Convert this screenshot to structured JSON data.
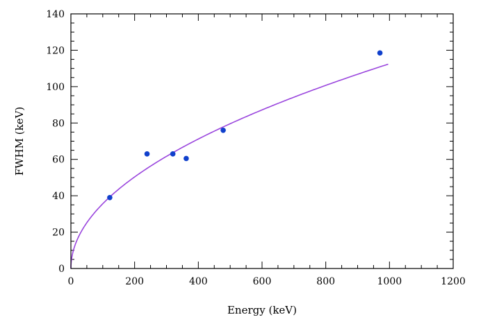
{
  "chart_data": {
    "type": "scatter",
    "title": "",
    "xlabel": "Energy (keV)",
    "ylabel": "FWHM (keV)",
    "xlim": [
      0,
      1200
    ],
    "ylim": [
      0,
      140
    ],
    "x_ticks": [
      0,
      200,
      400,
      600,
      800,
      1000,
      1200
    ],
    "y_ticks": [
      0,
      20,
      40,
      60,
      80,
      100,
      120,
      140
    ],
    "x_minor_step": 50,
    "y_minor_step": 5,
    "grid": false,
    "legend": "none",
    "series": [
      {
        "kind": "points",
        "color": "#1040cc",
        "points": [
          {
            "x": 122,
            "y": 39
          },
          {
            "x": 239,
            "y": 63
          },
          {
            "x": 320,
            "y": 63
          },
          {
            "x": 362,
            "y": 60.5
          },
          {
            "x": 478,
            "y": 76
          },
          {
            "x": 970,
            "y": 118.5
          }
        ]
      },
      {
        "kind": "fit-curve",
        "color": "#9944dd",
        "formula": "FWHM = 3.56 * sqrt(E)",
        "x_range": [
          0,
          996
        ]
      }
    ]
  }
}
